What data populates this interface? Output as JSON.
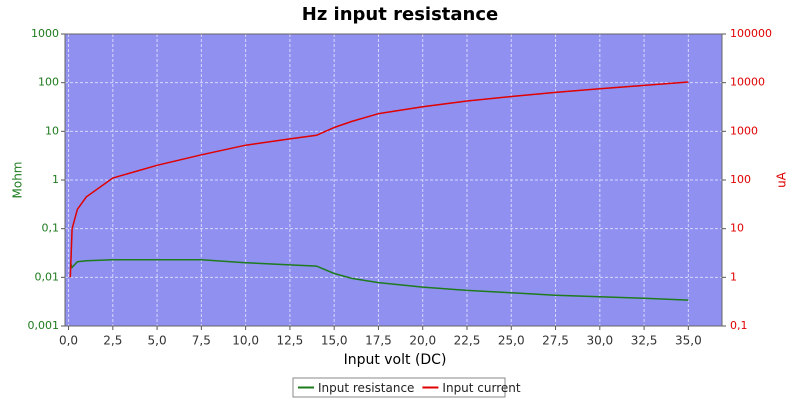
{
  "chart_data": {
    "type": "line",
    "title": "Hz input resistance",
    "xlabel": "Input volt (DC)",
    "ylabel": "Mohm",
    "y2label": "uA",
    "x": [
      0.1,
      0.2,
      0.5,
      1,
      2.5,
      5,
      7.5,
      10,
      12.5,
      14,
      15,
      16,
      17.5,
      20,
      22.5,
      25,
      27.5,
      30,
      32.5,
      35
    ],
    "series": [
      {
        "name": "Input resistance",
        "color": "#1e7b1e",
        "axis": "y",
        "values": [
          0.02,
          0.016,
          0.021,
          0.022,
          0.023,
          0.023,
          0.023,
          0.02,
          0.018,
          0.017,
          0.012,
          0.0095,
          0.0078,
          0.0063,
          0.0054,
          0.0048,
          0.0043,
          0.004,
          0.0037,
          0.0034
        ]
      },
      {
        "name": "Input current",
        "color": "#e00000",
        "axis": "y2",
        "values": [
          1,
          10,
          25,
          45,
          110,
          200,
          330,
          520,
          700,
          830,
          1200,
          1600,
          2300,
          3200,
          4200,
          5200,
          6300,
          7500,
          8800,
          10300
        ]
      }
    ],
    "xlim": [
      -0.2,
      36.9
    ],
    "xticks": [
      {
        "value": 0,
        "label": "0,0"
      },
      {
        "value": 2.5,
        "label": "2,5"
      },
      {
        "value": 5,
        "label": "5,0"
      },
      {
        "value": 7.5,
        "label": "7,5"
      },
      {
        "value": 10,
        "label": "10,0"
      },
      {
        "value": 12.5,
        "label": "12,5"
      },
      {
        "value": 15,
        "label": "15,0"
      },
      {
        "value": 17.5,
        "label": "17,5"
      },
      {
        "value": 20,
        "label": "20,0"
      },
      {
        "value": 22.5,
        "label": "22,5"
      },
      {
        "value": 25,
        "label": "25,0"
      },
      {
        "value": 27.5,
        "label": "27,5"
      },
      {
        "value": 30,
        "label": "30,0"
      },
      {
        "value": 32.5,
        "label": "32,5"
      },
      {
        "value": 35,
        "label": "35,0"
      }
    ],
    "ylim": [
      0.001,
      1000
    ],
    "yticks": [
      {
        "value": 0.001,
        "label": "0,001"
      },
      {
        "value": 0.01,
        "label": "0,01"
      },
      {
        "value": 0.1,
        "label": "0,1"
      },
      1,
      10,
      100,
      1000
    ],
    "y2lim": [
      0.1,
      100000
    ],
    "y2ticks": [
      {
        "value": 0.1,
        "label": "0,1"
      },
      1,
      10,
      100,
      1000,
      10000,
      100000
    ],
    "yscale": "log",
    "y2scale": "log",
    "grid": true,
    "legend": "bottom",
    "plot_background": "#9090f0"
  }
}
